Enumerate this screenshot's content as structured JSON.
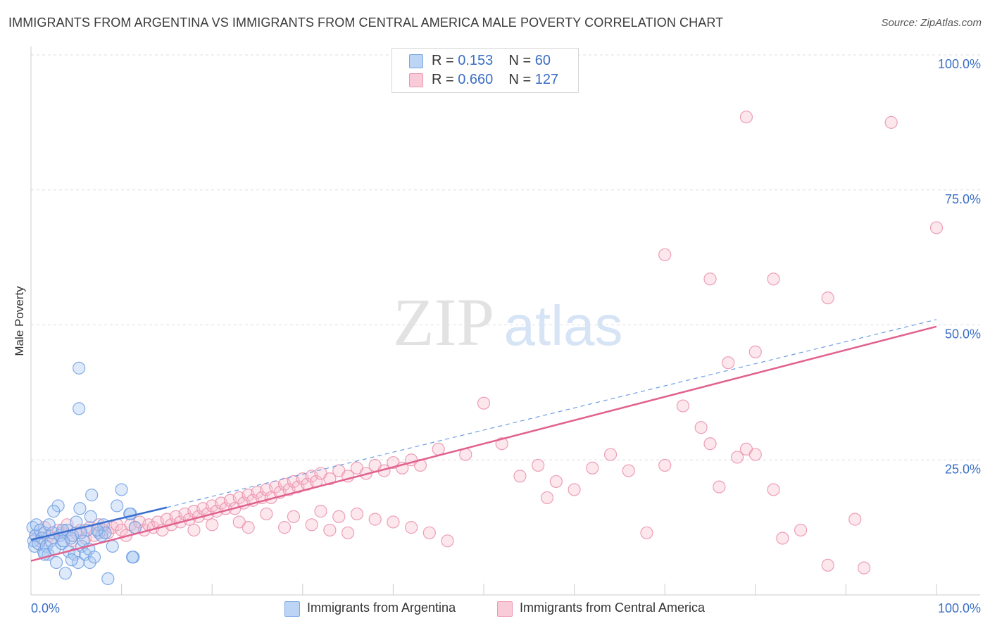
{
  "header": {
    "title": "IMMIGRANTS FROM ARGENTINA VS IMMIGRANTS FROM CENTRAL AMERICA MALE POVERTY CORRELATION CHART",
    "source": "Source: ZipAtlas.com"
  },
  "watermark": {
    "zip": "ZIP",
    "atlas": "atlas"
  },
  "stats": {
    "argentina": {
      "r_label": "R =",
      "r_value": "0.153",
      "n_label": "N =",
      "n_value": "60"
    },
    "central_america": {
      "r_label": "R =",
      "r_value": "0.660",
      "n_label": "N =",
      "n_value": "127"
    }
  },
  "legend": {
    "argentina": "Immigrants from Argentina",
    "central_america": "Immigrants from Central America"
  },
  "colors": {
    "argentina_fill": "#a9c8f2",
    "argentina_stroke": "#6d9ee3",
    "argentina_line": "#3a6fd0",
    "central_fill": "#f6bfd0",
    "central_stroke": "#ea8eab",
    "central_line": "#e2628f",
    "axis_label": "#3b6fc4",
    "grid": "#dddddd"
  },
  "chart_data": {
    "type": "scatter",
    "xlabel": "",
    "ylabel": "Male Poverty",
    "xlim": [
      0,
      100
    ],
    "ylim": [
      0,
      100
    ],
    "x_tick_labels": [
      "0.0%",
      "100.0%"
    ],
    "y_tick_labels": [
      "25.0%",
      "50.0%",
      "75.0%",
      "100.0%"
    ],
    "y_tick_values": [
      25,
      50,
      75,
      100
    ],
    "legend_position": "bottom",
    "grid": true,
    "series": [
      {
        "name": "Immigrants from Argentina",
        "r": 0.153,
        "n": 60,
        "trend": {
          "x": [
            0,
            15
          ],
          "y": [
            10.2,
            16.2
          ],
          "style": "solid"
        },
        "trend_extension": {
          "x": [
            15,
            100
          ],
          "y": [
            16.2,
            51
          ],
          "style": "dashed"
        },
        "points": [
          [
            0.2,
            12.5
          ],
          [
            0.3,
            10
          ],
          [
            0.4,
            9
          ],
          [
            0.5,
            11
          ],
          [
            0.6,
            13
          ],
          [
            0.8,
            9.5
          ],
          [
            1,
            12
          ],
          [
            1.2,
            10.5
          ],
          [
            1.4,
            8
          ],
          [
            1.5,
            11.5
          ],
          [
            1.7,
            9
          ],
          [
            1.9,
            7.5
          ],
          [
            2,
            13
          ],
          [
            2.2,
            10
          ],
          [
            2.4,
            11.5
          ],
          [
            2.6,
            8.5
          ],
          [
            2.8,
            6
          ],
          [
            3,
            16.5
          ],
          [
            3.2,
            11
          ],
          [
            3.4,
            9.5
          ],
          [
            3.6,
            10
          ],
          [
            3.8,
            4
          ],
          [
            4,
            12
          ],
          [
            4.2,
            8
          ],
          [
            4.4,
            10.5
          ],
          [
            4.6,
            11
          ],
          [
            4.8,
            7.5
          ],
          [
            5,
            13.5
          ],
          [
            5.2,
            6
          ],
          [
            5.4,
            16
          ],
          [
            5.6,
            9
          ],
          [
            5.8,
            10
          ],
          [
            6,
            7.5
          ],
          [
            6.2,
            12
          ],
          [
            6.4,
            8.5
          ],
          [
            6.6,
            14.5
          ],
          [
            1.5,
            7.5
          ],
          [
            2.5,
            15.5
          ],
          [
            3.5,
            12
          ],
          [
            4.5,
            6.5
          ],
          [
            5.5,
            11.5
          ],
          [
            6.5,
            6
          ],
          [
            7.5,
            11.5
          ],
          [
            7.8,
            11
          ],
          [
            8,
            13
          ],
          [
            8.2,
            11.5
          ],
          [
            8.5,
            3
          ],
          [
            9,
            9
          ],
          [
            9.5,
            16.5
          ],
          [
            10,
            19.5
          ],
          [
            11,
            15
          ],
          [
            5.3,
            42
          ],
          [
            5.3,
            34.5
          ],
          [
            6.7,
            18.5
          ],
          [
            7,
            7
          ],
          [
            7.3,
            12
          ],
          [
            10.9,
            15
          ],
          [
            11.5,
            12.5
          ],
          [
            11.3,
            7
          ],
          [
            11.2,
            7
          ]
        ]
      },
      {
        "name": "Immigrants from Central America",
        "r": 0.66,
        "n": 127,
        "trend": {
          "x": [
            0,
            100
          ],
          "y": [
            6.3,
            49.7
          ],
          "style": "solid"
        },
        "points": [
          [
            0.5,
            11
          ],
          [
            1,
            10
          ],
          [
            1.5,
            12.5
          ],
          [
            2,
            11
          ],
          [
            2.5,
            10.5
          ],
          [
            3,
            12
          ],
          [
            3.5,
            11.5
          ],
          [
            4,
            13
          ],
          [
            4.5,
            10
          ],
          [
            5,
            11.5
          ],
          [
            5.5,
            12
          ],
          [
            6,
            10.5
          ],
          [
            6.5,
            12.5
          ],
          [
            7,
            11
          ],
          [
            7.5,
            13
          ],
          [
            8,
            12
          ],
          [
            8.5,
            11.5
          ],
          [
            9,
            12.5
          ],
          [
            9.5,
            13
          ],
          [
            10,
            12
          ],
          [
            10.5,
            11
          ],
          [
            11,
            13
          ],
          [
            11.5,
            12.5
          ],
          [
            12,
            13.5
          ],
          [
            12.5,
            12
          ],
          [
            13,
            13
          ],
          [
            13.5,
            12.5
          ],
          [
            14,
            13.5
          ],
          [
            14.5,
            12
          ],
          [
            15,
            14
          ],
          [
            15.5,
            13
          ],
          [
            16,
            14.5
          ],
          [
            16.5,
            13.5
          ],
          [
            17,
            15
          ],
          [
            17.5,
            14
          ],
          [
            18,
            15.5
          ],
          [
            18.5,
            14.5
          ],
          [
            19,
            16
          ],
          [
            19.5,
            15
          ],
          [
            20,
            16.5
          ],
          [
            20.5,
            15.5
          ],
          [
            21,
            17
          ],
          [
            21.5,
            16
          ],
          [
            22,
            17.5
          ],
          [
            22.5,
            16
          ],
          [
            23,
            18
          ],
          [
            23.5,
            17
          ],
          [
            24,
            18.5
          ],
          [
            24.5,
            17.5
          ],
          [
            25,
            19
          ],
          [
            25.5,
            18
          ],
          [
            26,
            19.5
          ],
          [
            26.5,
            18
          ],
          [
            27,
            20
          ],
          [
            27.5,
            19
          ],
          [
            28,
            20.5
          ],
          [
            28.5,
            19.5
          ],
          [
            29,
            21
          ],
          [
            29.5,
            20
          ],
          [
            30,
            21.5
          ],
          [
            30.5,
            20.5
          ],
          [
            31,
            22
          ],
          [
            31.5,
            21
          ],
          [
            32,
            22.5
          ],
          [
            33,
            21.5
          ],
          [
            34,
            23
          ],
          [
            35,
            22
          ],
          [
            36,
            23.5
          ],
          [
            37,
            22.5
          ],
          [
            38,
            24
          ],
          [
            39,
            23
          ],
          [
            40,
            24.5
          ],
          [
            41,
            23.5
          ],
          [
            42,
            25
          ],
          [
            43,
            24
          ],
          [
            18,
            12
          ],
          [
            23,
            13.5
          ],
          [
            26,
            15
          ],
          [
            29,
            14.5
          ],
          [
            32,
            15.5
          ],
          [
            34,
            14.5
          ],
          [
            36,
            15
          ],
          [
            38,
            14
          ],
          [
            40,
            13.5
          ],
          [
            42,
            12.5
          ],
          [
            44,
            11.5
          ],
          [
            46,
            10
          ],
          [
            28,
            12.5
          ],
          [
            31,
            13
          ],
          [
            33,
            12
          ],
          [
            35,
            11.5
          ],
          [
            20,
            13
          ],
          [
            24,
            12.5
          ],
          [
            45,
            27
          ],
          [
            48,
            26
          ],
          [
            50,
            35.5
          ],
          [
            52,
            28
          ],
          [
            54,
            22
          ],
          [
            56,
            24
          ],
          [
            57,
            18
          ],
          [
            58,
            21
          ],
          [
            60,
            19.5
          ],
          [
            62,
            23.5
          ],
          [
            64,
            26
          ],
          [
            66,
            23
          ],
          [
            68,
            11.5
          ],
          [
            70,
            24
          ],
          [
            72,
            35
          ],
          [
            74,
            31
          ],
          [
            75,
            28
          ],
          [
            76,
            20
          ],
          [
            78,
            25.5
          ],
          [
            79,
            27
          ],
          [
            80,
            26
          ],
          [
            82,
            19.5
          ],
          [
            83,
            10.5
          ],
          [
            85,
            12
          ],
          [
            88,
            5.5
          ],
          [
            92,
            5
          ],
          [
            75,
            58.5
          ],
          [
            82,
            58.5
          ],
          [
            88,
            55
          ],
          [
            70,
            63
          ],
          [
            77,
            43
          ],
          [
            80,
            45
          ],
          [
            79,
            88.5
          ],
          [
            95,
            87.5
          ],
          [
            100,
            68
          ],
          [
            91,
            14
          ]
        ]
      }
    ]
  }
}
